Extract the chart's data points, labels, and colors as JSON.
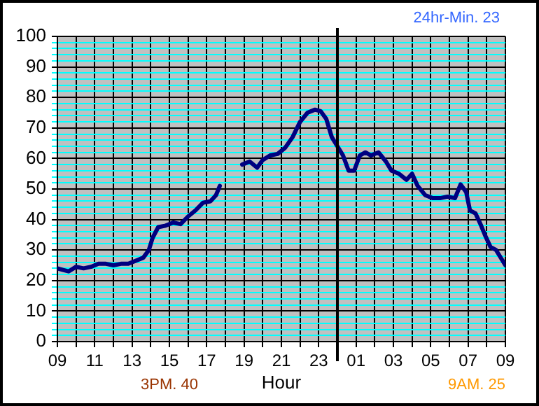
{
  "chart_data": {
    "type": "line",
    "xlabel": "Hour",
    "annotations": [
      "24hr-Min. 23",
      "3PM. 40",
      "9AM. 25"
    ],
    "x": [
      "--01-01T09:00",
      "--01-01T09:18",
      "--01-01T09:36",
      "--01-01T10:00",
      "--01-01T10:24",
      "--01-01T10:48",
      "--01-01T11:12",
      "--01-01T11:36",
      "--01-01T12:00",
      "--01-01T12:24",
      "--01-01T12:48",
      "--01-01T13:12",
      "--01-01T13:36",
      "--01-01T13:54",
      "--01-01T14:06",
      "--01-01T14:24",
      "--01-01T14:48",
      "--01-01T15:12",
      "--01-01T15:36",
      "--01-01T16:00",
      "--01-01T16:24",
      "--01-01T16:48",
      "--01-01T17:12",
      "--01-01T17:30",
      "--01-01T17:42",
      "--01-01T18:18",
      "--01-01T18:54",
      "--01-01T19:18",
      "--01-01T19:42",
      "--01-01T20:00",
      "--01-01T20:24",
      "--01-01T20:48",
      "--01-01T21:12",
      "--01-01T21:36",
      "--01-01T22:00",
      "--01-01T22:24",
      "--01-01T22:48",
      "--01-01T23:06",
      "--01-01T23:24",
      "--01-01T23:42",
      "--01-02T00:00",
      "--01-02T00:18",
      "--01-02T00:36",
      "--01-02T00:54",
      "--01-02T01:12",
      "--01-02T01:30",
      "--01-02T01:48",
      "--01-02T02:12",
      "--01-02T02:36",
      "--01-02T02:54",
      "--01-02T03:18",
      "--01-02T03:42",
      "--01-02T04:00",
      "--01-02T04:18",
      "--01-02T04:42",
      "--01-02T05:06",
      "--01-02T05:30",
      "--01-02T05:54",
      "--01-02T06:18",
      "--01-02T06:36",
      "--01-02T06:54",
      "--01-02T07:06",
      "--01-02T07:24",
      "--01-02T07:42",
      "--01-02T07:54",
      "--01-02T08:12",
      "--01-02T08:30",
      "--01-02T08:48",
      "--01-02T09:00"
    ],
    "series": [
      {
        "color": "#000080",
        "values": [
          24,
          23.5,
          23,
          24.5,
          24,
          24.5,
          25.5,
          25.5,
          25,
          25.5,
          25.5,
          26.5,
          27.5,
          30,
          34,
          37.5,
          38,
          39,
          38.5,
          41,
          43,
          45.5,
          46,
          48,
          51,
          null,
          58,
          59,
          57,
          59.5,
          61,
          61.5,
          63.5,
          67,
          72,
          75,
          76,
          75.5,
          73,
          67,
          64,
          61,
          56,
          56,
          61,
          62,
          61,
          62,
          59,
          56,
          55,
          53,
          55,
          51,
          48,
          47,
          47,
          47.5,
          47,
          51.5,
          49,
          43,
          42,
          38,
          35,
          31,
          30,
          27,
          25
        ]
      }
    ],
    "ylim": [
      0,
      100
    ],
    "yticks": [
      0,
      {
        "value": 2,
        "label": null
      },
      {
        "value": 4,
        "label": null
      },
      {
        "value": 6,
        "label": null
      },
      {
        "value": 8,
        "label": null
      },
      10,
      {
        "value": 12,
        "label": null
      },
      {
        "value": 14,
        "label": null
      },
      {
        "value": 16,
        "label": null
      },
      {
        "value": 18,
        "label": null
      },
      20,
      {
        "value": 22,
        "label": null
      },
      {
        "value": 24,
        "label": null
      },
      {
        "value": 26,
        "label": null
      },
      {
        "value": 28,
        "label": null
      },
      30,
      {
        "value": 32,
        "label": null
      },
      {
        "value": 34,
        "label": null
      },
      {
        "value": 36,
        "label": null
      },
      {
        "value": 38,
        "label": null
      },
      40,
      {
        "value": 42,
        "label": null
      },
      {
        "value": 44,
        "label": null
      },
      {
        "value": 46,
        "label": null
      },
      {
        "value": 48,
        "label": null
      },
      50,
      {
        "value": 52,
        "label": null
      },
      {
        "value": 54,
        "label": null
      },
      {
        "value": 56,
        "label": null
      },
      {
        "value": 58,
        "label": null
      },
      60,
      {
        "value": 62,
        "label": null
      },
      {
        "value": 64,
        "label": null
      },
      {
        "value": 66,
        "label": null
      },
      {
        "value": 68,
        "label": null
      },
      70,
      {
        "value": 72,
        "label": null
      },
      {
        "value": 74,
        "label": null
      },
      {
        "value": 76,
        "label": null
      },
      {
        "value": 78,
        "label": null
      },
      80,
      {
        "value": 82,
        "label": null
      },
      {
        "value": 84,
        "label": null
      },
      {
        "value": 86,
        "label": null
      },
      {
        "value": 88,
        "label": null
      },
      90,
      {
        "value": 92,
        "label": null
      },
      {
        "value": 94,
        "label": null
      },
      {
        "value": 96,
        "label": null
      },
      {
        "value": 98,
        "label": null
      },
      100
    ],
    "xlim": [
      "--01-01T09:00",
      "--01-02T09:00"
    ],
    "xticks": [
      {
        "value": "--01-01T09:00",
        "label": "09"
      },
      {
        "value": "--01-01T10:00",
        "label": null
      },
      {
        "value": "--01-01T11:00",
        "label": "11"
      },
      {
        "value": "--01-01T12:00",
        "label": null
      },
      {
        "value": "--01-01T13:00",
        "label": "13"
      },
      {
        "value": "--01-01T14:00",
        "label": null
      },
      {
        "value": "--01-01T15:00",
        "label": "15"
      },
      {
        "value": "--01-01T16:00",
        "label": null
      },
      {
        "value": "--01-01T17:00",
        "label": "17"
      },
      {
        "value": "--01-01T18:00",
        "label": null
      },
      {
        "value": "--01-01T19:00",
        "label": "19"
      },
      {
        "value": "--01-01T20:00",
        "label": null
      },
      {
        "value": "--01-01T21:00",
        "label": "21"
      },
      {
        "value": "--01-01T22:00",
        "label": null
      },
      {
        "value": "--01-01T23:00",
        "label": "23"
      },
      {
        "value": "--01-02T00:00",
        "label": null
      },
      {
        "value": "--01-02T01:00",
        "label": "01"
      },
      {
        "value": "--01-02T02:00",
        "label": null
      },
      {
        "value": "--01-02T03:00",
        "label": "03"
      },
      {
        "value": "--01-02T04:00",
        "label": null
      },
      {
        "value": "--01-02T05:00",
        "label": "05"
      },
      {
        "value": "--01-02T06:00",
        "label": null
      },
      {
        "value": "--01-02T07:00",
        "label": "07"
      },
      {
        "value": "--01-02T08:00",
        "label": null
      },
      {
        "value": "--01-02T09:00",
        "label": "09"
      }
    ],
    "ref_lines": [
      {
        "axis": "x",
        "value": "--01-02T00:00",
        "color": "#000000"
      }
    ],
    "grid": true,
    "legend": false,
    "marker": "none",
    "line_style": "solid"
  }
}
